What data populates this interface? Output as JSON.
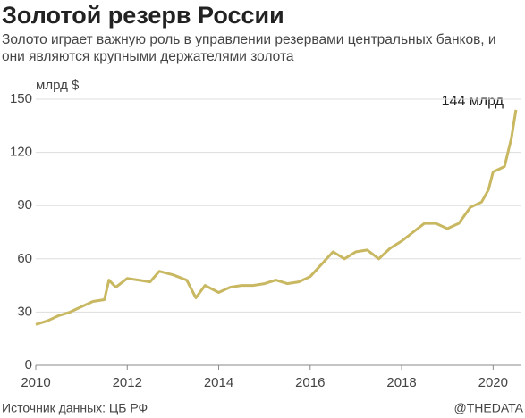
{
  "chart_data": {
    "type": "line",
    "title": "Золотой резерв России",
    "subtitle": "Золото играет важную роль в управлении резервами центральных банков, и они являются крупными держателями золота",
    "y_label": "млрд $",
    "annotation": "144 млрд",
    "source": "Источник данных: ЦБ РФ",
    "credit": "@THEDATA",
    "x": [
      2010.0,
      2010.25,
      2010.5,
      2010.75,
      2011.0,
      2011.25,
      2011.5,
      2011.6,
      2011.75,
      2012.0,
      2012.25,
      2012.5,
      2012.7,
      2013.0,
      2013.3,
      2013.5,
      2013.7,
      2014.0,
      2014.25,
      2014.5,
      2014.75,
      2015.0,
      2015.25,
      2015.5,
      2015.75,
      2016.0,
      2016.25,
      2016.5,
      2016.75,
      2017.0,
      2017.25,
      2017.5,
      2017.75,
      2018.0,
      2018.25,
      2018.5,
      2018.75,
      2019.0,
      2019.25,
      2019.5,
      2019.75,
      2019.9,
      2020.0,
      2020.25,
      2020.4,
      2020.5
    ],
    "series": [
      {
        "name": "Золотой резерв",
        "color": "#c9b862",
        "values": [
          23,
          25,
          28,
          30,
          33,
          36,
          37,
          48,
          44,
          49,
          48,
          47,
          53,
          51,
          48,
          38,
          45,
          41,
          44,
          45,
          45,
          46,
          48,
          46,
          47,
          50,
          57,
          64,
          60,
          64,
          65,
          60,
          66,
          70,
          75,
          80,
          80,
          77,
          80,
          89,
          92,
          99,
          109,
          112,
          128,
          144
        ]
      }
    ],
    "xlim": [
      2010,
      2020.6
    ],
    "xticks": [
      2010,
      2012,
      2014,
      2016,
      2018,
      2020
    ],
    "ylim": [
      0,
      150
    ],
    "yticks": [
      0,
      30,
      60,
      90,
      120,
      150
    ],
    "grid": true
  }
}
